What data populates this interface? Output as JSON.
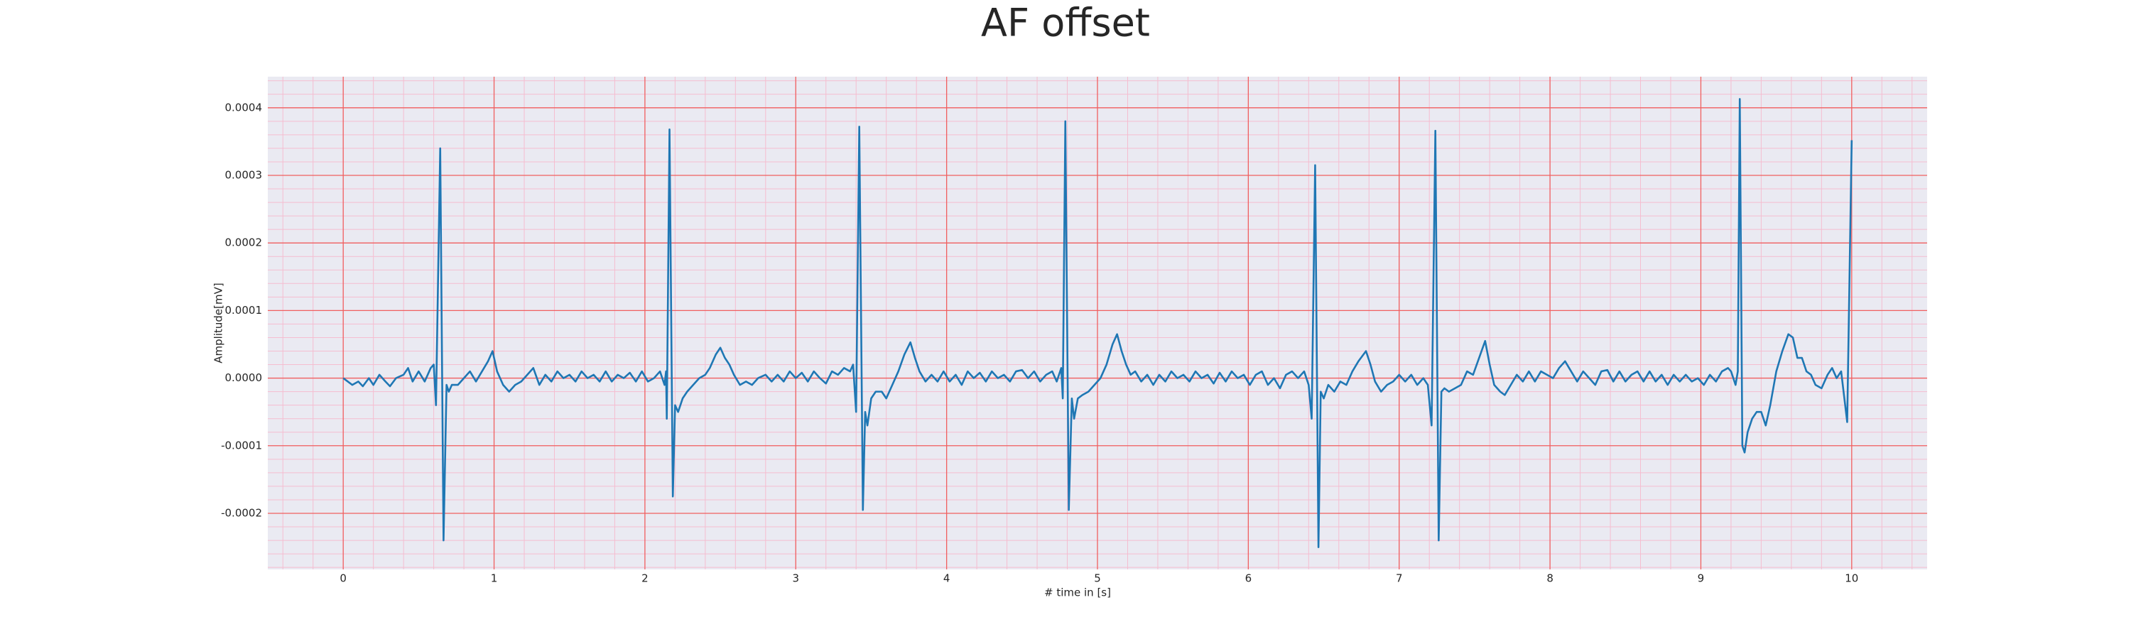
{
  "chart_data": {
    "type": "line",
    "title": "AF offset",
    "xlabel": "# time in [s]",
    "ylabel": "Amplitude[mV]",
    "color": "#1f77b4",
    "grid": true,
    "xlim": [
      -0.5,
      10.5
    ],
    "ylim": [
      -0.000283,
      0.000446
    ],
    "xticks": [
      0,
      1,
      2,
      3,
      4,
      5,
      6,
      7,
      8,
      9,
      10
    ],
    "yticks": [
      {
        "value": -0.0002,
        "label": "-0.0002"
      },
      {
        "value": -0.0001,
        "label": "-0.0001"
      },
      {
        "value": 0,
        "label": "0.0000"
      },
      {
        "value": 0.0001,
        "label": "0.0001"
      },
      {
        "value": 0.0002,
        "label": "0.0002"
      },
      {
        "value": 0.0003,
        "label": "0.0003"
      },
      {
        "value": 0.0004,
        "label": "0.0004"
      }
    ],
    "x": [
      0.0,
      0.03,
      0.06,
      0.1,
      0.13,
      0.17,
      0.2,
      0.24,
      0.28,
      0.31,
      0.35,
      0.4,
      0.43,
      0.46,
      0.5,
      0.54,
      0.58,
      0.6,
      0.615,
      0.643,
      0.665,
      0.685,
      0.7,
      0.72,
      0.76,
      0.8,
      0.84,
      0.88,
      0.92,
      0.96,
      0.99,
      1.02,
      1.06,
      1.1,
      1.14,
      1.18,
      1.22,
      1.26,
      1.3,
      1.34,
      1.38,
      1.42,
      1.46,
      1.5,
      1.54,
      1.58,
      1.62,
      1.66,
      1.7,
      1.74,
      1.78,
      1.82,
      1.86,
      1.9,
      1.94,
      1.98,
      2.02,
      2.06,
      2.1,
      2.13,
      2.14,
      2.145,
      2.163,
      2.185,
      2.2,
      2.22,
      2.25,
      2.28,
      2.32,
      2.36,
      2.4,
      2.43,
      2.47,
      2.5,
      2.53,
      2.56,
      2.59,
      2.63,
      2.67,
      2.71,
      2.75,
      2.8,
      2.84,
      2.88,
      2.92,
      2.96,
      3.0,
      3.04,
      3.08,
      3.12,
      3.16,
      3.2,
      3.24,
      3.28,
      3.32,
      3.36,
      3.38,
      3.4,
      3.421,
      3.445,
      3.46,
      3.475,
      3.5,
      3.53,
      3.57,
      3.6,
      3.64,
      3.68,
      3.72,
      3.76,
      3.79,
      3.82,
      3.86,
      3.9,
      3.94,
      3.98,
      4.02,
      4.06,
      4.1,
      4.14,
      4.18,
      4.22,
      4.26,
      4.3,
      4.34,
      4.38,
      4.42,
      4.46,
      4.5,
      4.54,
      4.58,
      4.62,
      4.66,
      4.7,
      4.73,
      4.76,
      4.77,
      4.787,
      4.81,
      4.83,
      4.845,
      4.87,
      4.9,
      4.94,
      4.98,
      5.02,
      5.06,
      5.1,
      5.13,
      5.16,
      5.19,
      5.22,
      5.25,
      5.29,
      5.33,
      5.37,
      5.41,
      5.45,
      5.49,
      5.53,
      5.57,
      5.61,
      5.65,
      5.69,
      5.73,
      5.77,
      5.81,
      5.85,
      5.89,
      5.93,
      5.97,
      6.01,
      6.05,
      6.09,
      6.13,
      6.17,
      6.21,
      6.25,
      6.29,
      6.33,
      6.37,
      6.4,
      6.42,
      6.443,
      6.465,
      6.48,
      6.5,
      6.53,
      6.57,
      6.61,
      6.65,
      6.69,
      6.73,
      6.78,
      6.81,
      6.84,
      6.88,
      6.92,
      6.96,
      7.0,
      7.04,
      7.08,
      7.12,
      7.16,
      7.19,
      7.215,
      7.24,
      7.262,
      7.28,
      7.3,
      7.33,
      7.37,
      7.41,
      7.45,
      7.49,
      7.53,
      7.57,
      7.6,
      7.63,
      7.67,
      7.7,
      7.74,
      7.78,
      7.82,
      7.86,
      7.9,
      7.94,
      7.98,
      8.02,
      8.06,
      8.1,
      8.14,
      8.18,
      8.22,
      8.26,
      8.3,
      8.34,
      8.38,
      8.42,
      8.46,
      8.5,
      8.54,
      8.58,
      8.62,
      8.66,
      8.7,
      8.74,
      8.78,
      8.82,
      8.86,
      8.9,
      8.94,
      8.98,
      9.02,
      9.06,
      9.1,
      9.14,
      9.18,
      9.2,
      9.23,
      9.245,
      9.258,
      9.275,
      9.29,
      9.31,
      9.34,
      9.37,
      9.4,
      9.43,
      9.46,
      9.5,
      9.54,
      9.58,
      9.61,
      9.64,
      9.67,
      9.7,
      9.73,
      9.76,
      9.8,
      9.84,
      9.87,
      9.9,
      9.93,
      9.97,
      10.0
    ],
    "values": [
      0,
      -5e-06,
      -1e-05,
      -5e-06,
      -1.2e-05,
      0,
      -1e-05,
      5e-06,
      -5e-06,
      -1.2e-05,
      0,
      5e-06,
      1.5e-05,
      -5e-06,
      1e-05,
      -5e-06,
      1.5e-05,
      2e-05,
      -4e-05,
      0.00034,
      -0.00024,
      -1e-05,
      -2e-05,
      -1e-05,
      -1e-05,
      0,
      1e-05,
      -5e-06,
      1e-05,
      2.5e-05,
      4e-05,
      1e-05,
      -1e-05,
      -2e-05,
      -1e-05,
      -5e-06,
      5e-06,
      1.5e-05,
      -1e-05,
      5e-06,
      -5e-06,
      1e-05,
      0,
      5e-06,
      -5e-06,
      1e-05,
      0,
      5e-06,
      -5e-06,
      1e-05,
      -5e-06,
      5e-06,
      0,
      8e-06,
      -5e-06,
      1e-05,
      -5e-06,
      0,
      1e-05,
      -1e-05,
      1e-05,
      -6e-05,
      0.000368,
      -0.000175,
      -4e-05,
      -5e-05,
      -3e-05,
      -2e-05,
      -1e-05,
      0,
      5e-06,
      1.5e-05,
      3.5e-05,
      4.5e-05,
      3e-05,
      2e-05,
      5e-06,
      -1e-05,
      -5e-06,
      -1e-05,
      0,
      5e-06,
      -5e-06,
      5e-06,
      -5e-06,
      1e-05,
      0,
      8e-06,
      -5e-06,
      1e-05,
      0,
      -8e-06,
      1e-05,
      5e-06,
      1.5e-05,
      1e-05,
      2e-05,
      -5e-05,
      0.000372,
      -0.000195,
      -5e-05,
      -7e-05,
      -3e-05,
      -2e-05,
      -2e-05,
      -3e-05,
      -1e-05,
      1e-05,
      3.5e-05,
      5.3e-05,
      3e-05,
      1e-05,
      -5e-06,
      5e-06,
      -5e-06,
      1e-05,
      -5e-06,
      5e-06,
      -1e-05,
      1e-05,
      0,
      8e-06,
      -5e-06,
      1e-05,
      0,
      5e-06,
      -5e-06,
      1e-05,
      1.2e-05,
      0,
      1e-05,
      -5e-06,
      5e-06,
      1e-05,
      -5e-06,
      1.5e-05,
      -3e-05,
      0.00038,
      -0.000195,
      -3e-05,
      -6e-05,
      -3e-05,
      -2.5e-05,
      -2e-05,
      -1e-05,
      0,
      2e-05,
      5e-05,
      6.5e-05,
      4e-05,
      2e-05,
      5e-06,
      1e-05,
      -5e-06,
      5e-06,
      -1e-05,
      5e-06,
      -5e-06,
      1e-05,
      0,
      5e-06,
      -5e-06,
      1e-05,
      0,
      5e-06,
      -8e-06,
      8e-06,
      -5e-06,
      1e-05,
      0,
      5e-06,
      -1e-05,
      5e-06,
      1e-05,
      -1e-05,
      0,
      -1.5e-05,
      5e-06,
      1e-05,
      0,
      1e-05,
      -1e-05,
      -6e-05,
      0.000315,
      -0.00025,
      -2e-05,
      -3e-05,
      -1e-05,
      -2e-05,
      -5e-06,
      -1e-05,
      1e-05,
      2.5e-05,
      4e-05,
      2e-05,
      -5e-06,
      -2e-05,
      -1e-05,
      -5e-06,
      5e-06,
      -5e-06,
      5e-06,
      -1e-05,
      0,
      -1e-05,
      -7e-05,
      0.000366,
      -0.00024,
      -2e-05,
      -1.5e-05,
      -2e-05,
      -1.5e-05,
      -1e-05,
      1e-05,
      5e-06,
      3e-05,
      5.5e-05,
      2e-05,
      -1e-05,
      -2e-05,
      -2.5e-05,
      -1e-05,
      5e-06,
      -5e-06,
      1e-05,
      -5e-06,
      1e-05,
      5e-06,
      0,
      1.5e-05,
      2.5e-05,
      1e-05,
      -5e-06,
      1e-05,
      0,
      -1e-05,
      1e-05,
      1.2e-05,
      -5e-06,
      1e-05,
      -5e-06,
      5e-06,
      1e-05,
      -5e-06,
      1e-05,
      -5e-06,
      5e-06,
      -1e-05,
      5e-06,
      -5e-06,
      5e-06,
      -5e-06,
      0,
      -1e-05,
      5e-06,
      -5e-06,
      1e-05,
      1.5e-05,
      1e-05,
      -1e-05,
      1e-05,
      0.000413,
      -0.0001,
      -0.00011,
      -8e-05,
      -6e-05,
      -5e-05,
      -5e-05,
      -7e-05,
      -4e-05,
      1e-05,
      4e-05,
      6.5e-05,
      6e-05,
      3e-05,
      3e-05,
      1e-05,
      5e-06,
      -1e-05,
      -1.5e-05,
      5e-06,
      1.5e-05,
      0,
      1e-05,
      -6.5e-05,
      0.000352
    ]
  }
}
